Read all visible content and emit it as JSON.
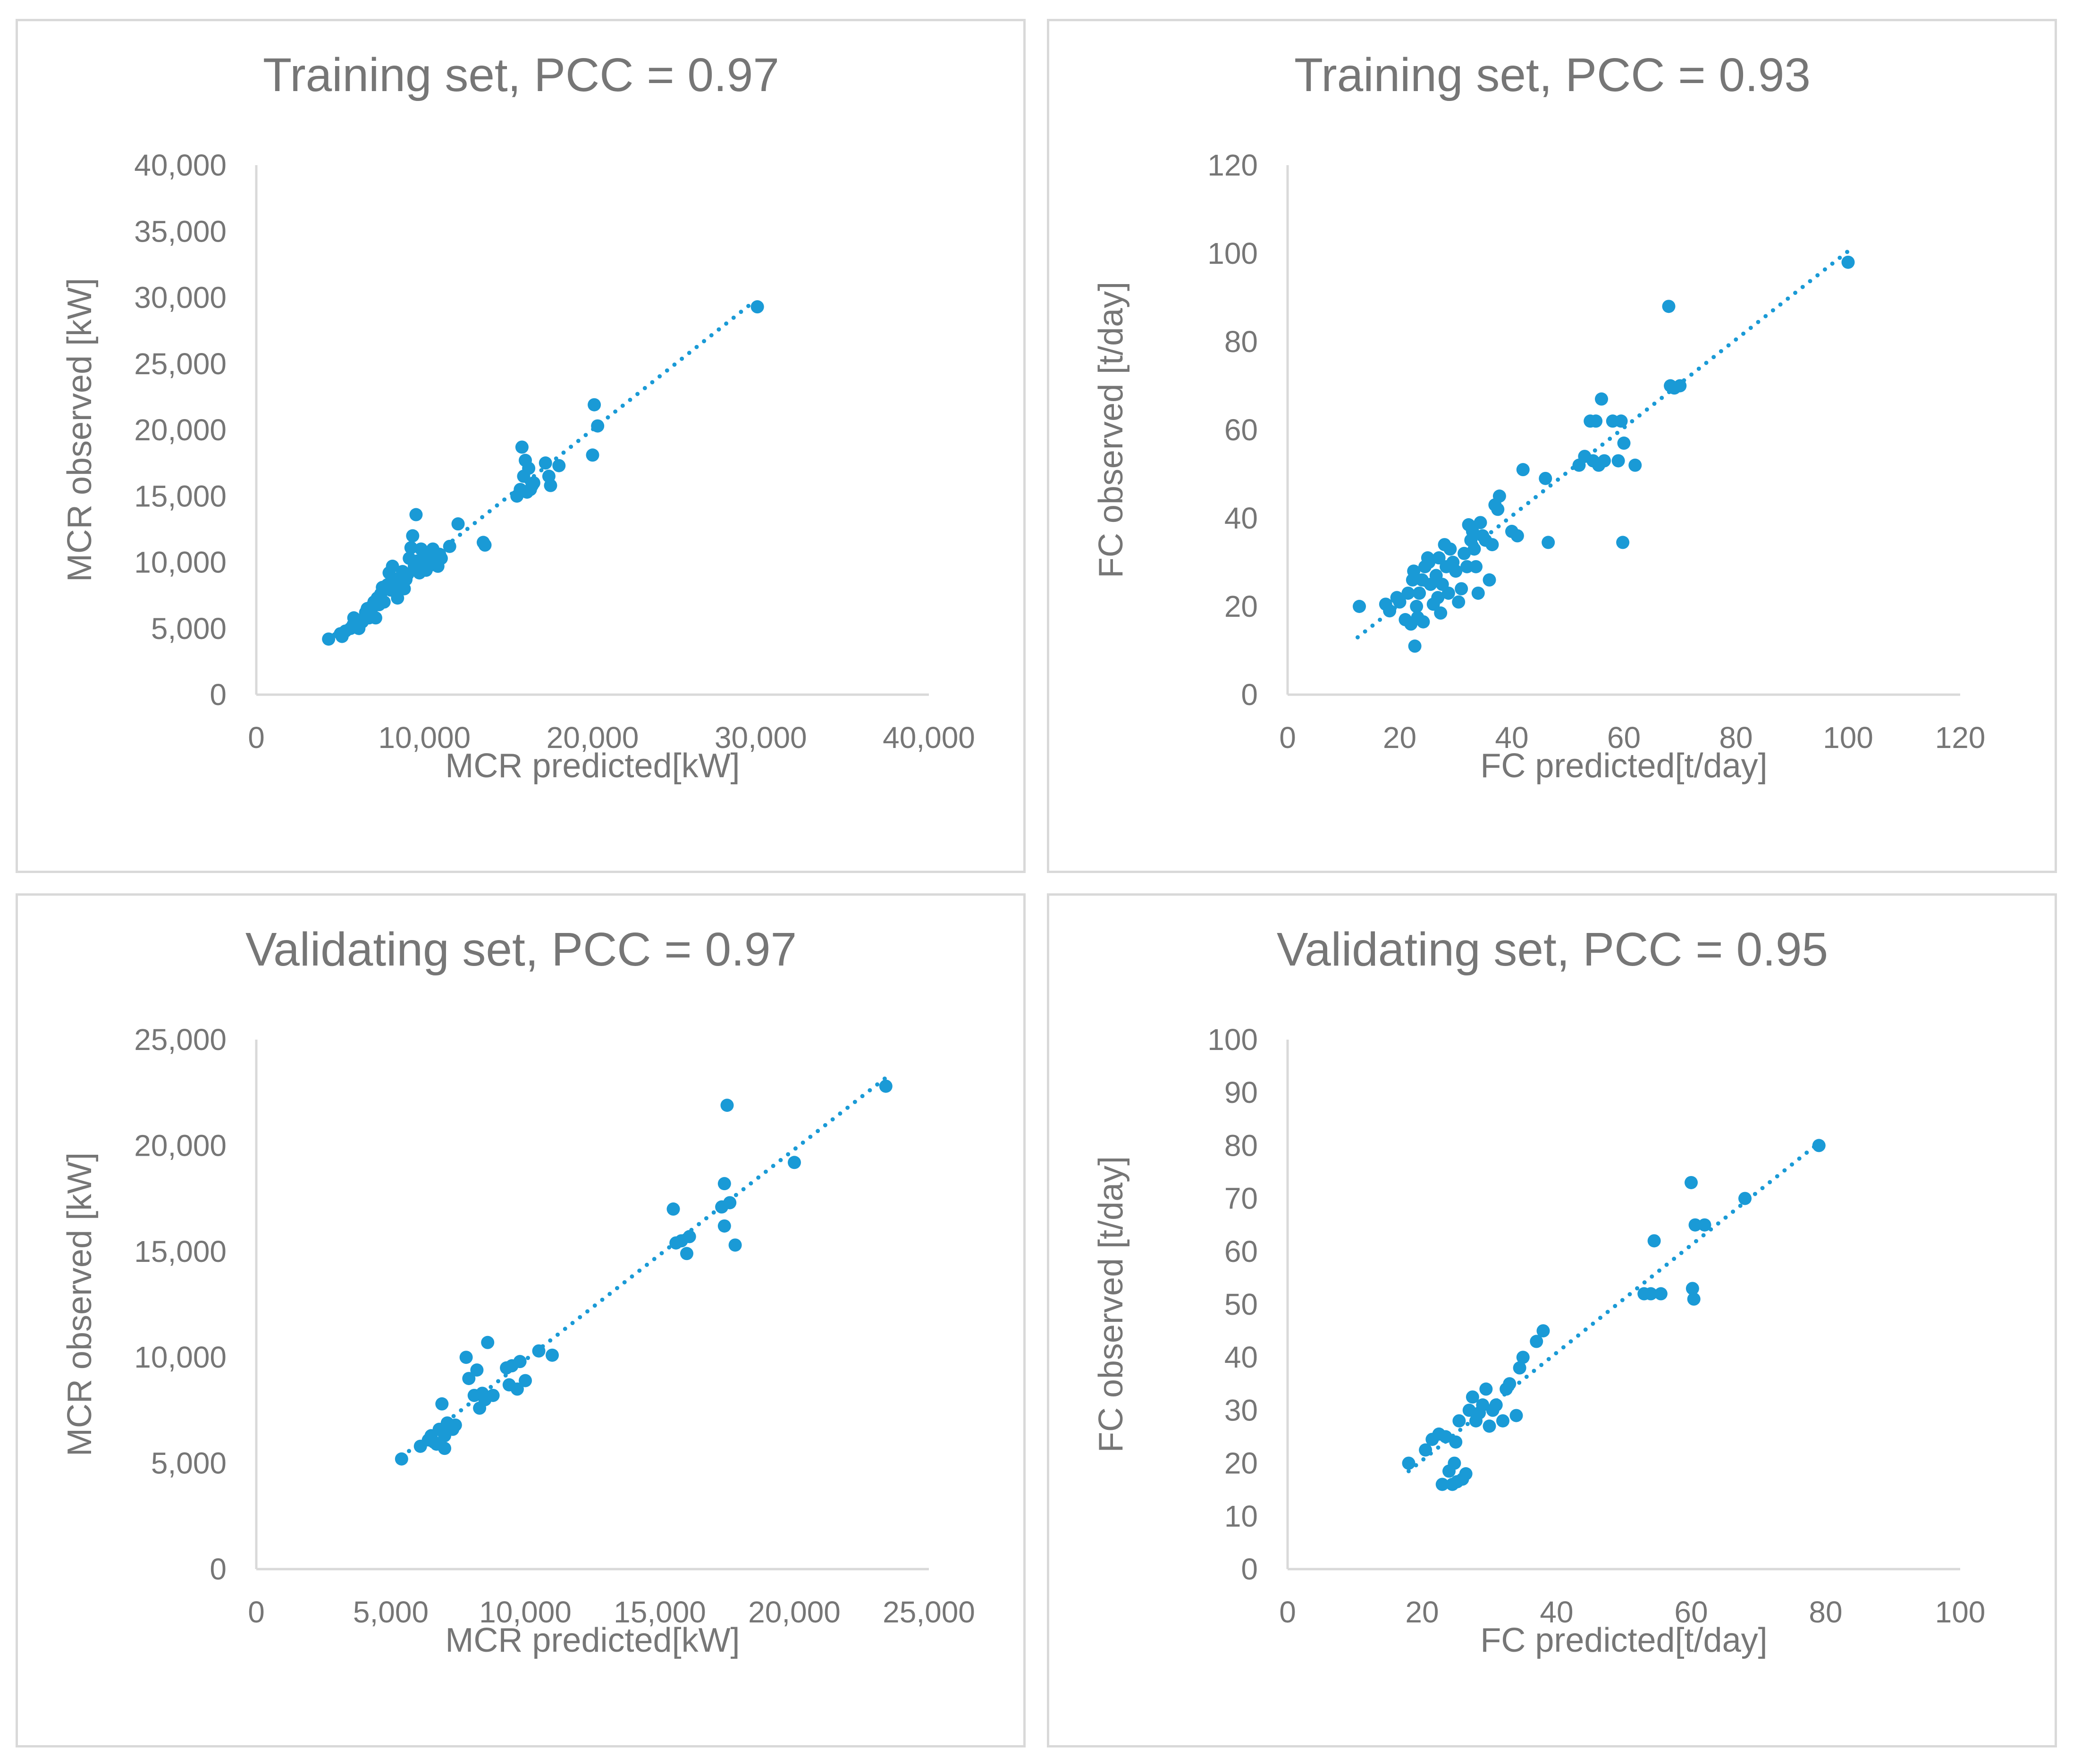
{
  "chart_data": [
    {
      "type": "scatter",
      "title": "Training set, PCC = 0.97",
      "xlabel": "MCR predicted[kW]",
      "ylabel": "MCR observed [kW]",
      "xlim": [
        0,
        40000
      ],
      "ylim": [
        0,
        40000
      ],
      "xticks": [
        "0",
        "10,000",
        "20,000",
        "30,000",
        "40,000"
      ],
      "yticks": [
        "0",
        "5,000",
        "10,000",
        "15,000",
        "20,000",
        "25,000",
        "30,000",
        "35,000",
        "40,000"
      ],
      "trendline": [
        [
          4200,
          4100
        ],
        [
          29500,
          29600
        ]
      ],
      "points": [
        [
          4300,
          4200
        ],
        [
          5000,
          4600
        ],
        [
          5100,
          4400
        ],
        [
          5300,
          4800
        ],
        [
          5600,
          5000
        ],
        [
          5800,
          5800
        ],
        [
          6000,
          5400
        ],
        [
          6100,
          5000
        ],
        [
          6300,
          5500
        ],
        [
          6500,
          6200
        ],
        [
          6600,
          6500
        ],
        [
          6700,
          5800
        ],
        [
          6800,
          6600
        ],
        [
          6900,
          6000
        ],
        [
          7000,
          7000
        ],
        [
          7100,
          5800
        ],
        [
          7200,
          7300
        ],
        [
          7300,
          6800
        ],
        [
          7400,
          7600
        ],
        [
          7500,
          8100
        ],
        [
          7600,
          7000
        ],
        [
          7800,
          8300
        ],
        [
          7900,
          9200
        ],
        [
          8000,
          7900
        ],
        [
          8100,
          9700
        ],
        [
          8200,
          8300
        ],
        [
          8300,
          7800
        ],
        [
          8400,
          7300
        ],
        [
          8500,
          8800
        ],
        [
          8600,
          8100
        ],
        [
          8700,
          9300
        ],
        [
          8800,
          8000
        ],
        [
          8900,
          8700
        ],
        [
          9000,
          9100
        ],
        [
          9100,
          10300
        ],
        [
          9200,
          11100
        ],
        [
          9300,
          12000
        ],
        [
          9400,
          9700
        ],
        [
          9500,
          13600
        ],
        [
          9600,
          10100
        ],
        [
          9700,
          9200
        ],
        [
          9800,
          11000
        ],
        [
          9900,
          9600
        ],
        [
          10000,
          10100
        ],
        [
          10100,
          9400
        ],
        [
          10200,
          10700
        ],
        [
          10300,
          10200
        ],
        [
          10400,
          9800
        ],
        [
          10500,
          11000
        ],
        [
          10600,
          10500
        ],
        [
          10700,
          10000
        ],
        [
          10800,
          9700
        ],
        [
          10900,
          10600
        ],
        [
          11000,
          10300
        ],
        [
          11500,
          11200
        ],
        [
          12000,
          12900
        ],
        [
          13500,
          11500
        ],
        [
          13600,
          11300
        ],
        [
          15500,
          15000
        ],
        [
          15700,
          15500
        ],
        [
          15800,
          18700
        ],
        [
          15900,
          16500
        ],
        [
          16000,
          17700
        ],
        [
          16100,
          15300
        ],
        [
          16200,
          17100
        ],
        [
          16300,
          15500
        ],
        [
          16400,
          15800
        ],
        [
          16500,
          16000
        ],
        [
          17200,
          17500
        ],
        [
          17400,
          16500
        ],
        [
          17500,
          15800
        ],
        [
          18000,
          17300
        ],
        [
          20000,
          18100
        ],
        [
          20100,
          21900
        ],
        [
          20300,
          20300
        ],
        [
          29800,
          29300
        ]
      ]
    },
    {
      "type": "scatter",
      "title": "Training set, PCC = 0.93",
      "xlabel": "FC predicted[t/day]",
      "ylabel": "FC observed [t/day]",
      "xlim": [
        0,
        120
      ],
      "ylim": [
        0,
        120
      ],
      "xticks": [
        "0",
        "20",
        "40",
        "60",
        "80",
        "100",
        "120"
      ],
      "yticks": [
        "0",
        "20",
        "40",
        "60",
        "80",
        "100",
        "120"
      ],
      "trendline": [
        [
          12.5,
          13
        ],
        [
          100,
          100.5
        ]
      ],
      "points": [
        [
          12.8,
          20
        ],
        [
          17.5,
          20.5
        ],
        [
          18.2,
          19
        ],
        [
          19.5,
          22
        ],
        [
          20,
          21
        ],
        [
          21,
          17
        ],
        [
          21.5,
          23
        ],
        [
          22,
          16
        ],
        [
          22.3,
          26
        ],
        [
          22.5,
          28
        ],
        [
          22.7,
          11
        ],
        [
          23,
          20
        ],
        [
          23.2,
          17.5
        ],
        [
          23.5,
          23
        ],
        [
          24,
          26
        ],
        [
          24.2,
          16.5
        ],
        [
          24.5,
          29
        ],
        [
          25,
          31
        ],
        [
          25.2,
          30
        ],
        [
          25.5,
          25
        ],
        [
          26,
          20.5
        ],
        [
          26.5,
          27
        ],
        [
          26.8,
          22
        ],
        [
          27,
          31
        ],
        [
          27.3,
          18.5
        ],
        [
          27.6,
          25
        ],
        [
          28,
          34
        ],
        [
          28.3,
          29
        ],
        [
          28.7,
          23
        ],
        [
          29,
          33
        ],
        [
          29.5,
          30
        ],
        [
          30,
          28
        ],
        [
          30.5,
          21
        ],
        [
          31,
          24
        ],
        [
          31.5,
          32
        ],
        [
          32,
          29
        ],
        [
          32.3,
          38.5
        ],
        [
          32.7,
          35
        ],
        [
          33,
          37
        ],
        [
          33.3,
          33
        ],
        [
          33.6,
          29
        ],
        [
          34,
          23
        ],
        [
          34.4,
          39
        ],
        [
          34.8,
          36
        ],
        [
          35.3,
          35
        ],
        [
          36,
          26
        ],
        [
          36.5,
          34
        ],
        [
          37,
          43
        ],
        [
          37.5,
          42
        ],
        [
          37.8,
          45
        ],
        [
          40,
          37
        ],
        [
          41,
          36
        ],
        [
          42,
          51
        ],
        [
          46,
          49
        ],
        [
          46.5,
          34.5
        ],
        [
          52,
          52
        ],
        [
          53,
          54
        ],
        [
          54,
          62
        ],
        [
          54.5,
          53
        ],
        [
          55,
          62
        ],
        [
          55.5,
          52
        ],
        [
          56,
          67
        ],
        [
          56.5,
          53
        ],
        [
          58,
          62
        ],
        [
          59,
          53
        ],
        [
          59.5,
          62
        ],
        [
          59.8,
          34.5
        ],
        [
          60,
          57
        ],
        [
          62,
          52
        ],
        [
          68,
          88
        ],
        [
          68.3,
          70
        ],
        [
          69,
          69.5
        ],
        [
          70,
          70
        ],
        [
          100,
          98
        ]
      ]
    },
    {
      "type": "scatter",
      "title": "Validating set, PCC = 0.97",
      "xlabel": "MCR predicted[kW]",
      "ylabel": "MCR observed [kW]",
      "xlim": [
        0,
        25000
      ],
      "ylim": [
        0,
        25000
      ],
      "xticks": [
        "0",
        "5,000",
        "10,000",
        "15,000",
        "20,000",
        "25,000"
      ],
      "yticks": [
        "0",
        "5,000",
        "10,000",
        "15,000",
        "20,000",
        "25,000"
      ],
      "trendline": [
        [
          5400,
          5300
        ],
        [
          23400,
          23200
        ]
      ],
      "points": [
        [
          5400,
          5200
        ],
        [
          6100,
          5800
        ],
        [
          6400,
          6100
        ],
        [
          6500,
          6300
        ],
        [
          6600,
          6000
        ],
        [
          6700,
          5900
        ],
        [
          6800,
          6600
        ],
        [
          6900,
          7800
        ],
        [
          7000,
          6300
        ],
        [
          7000,
          5700
        ],
        [
          7100,
          6900
        ],
        [
          7200,
          6700
        ],
        [
          7300,
          6600
        ],
        [
          7400,
          6800
        ],
        [
          7800,
          10000
        ],
        [
          7900,
          9000
        ],
        [
          8100,
          8200
        ],
        [
          8200,
          9400
        ],
        [
          8300,
          7600
        ],
        [
          8400,
          8300
        ],
        [
          8500,
          8000
        ],
        [
          8600,
          10700
        ],
        [
          8800,
          8200
        ],
        [
          9300,
          9500
        ],
        [
          9400,
          8700
        ],
        [
          9500,
          9600
        ],
        [
          9700,
          8500
        ],
        [
          9800,
          9800
        ],
        [
          10000,
          8900
        ],
        [
          10500,
          10300
        ],
        [
          11000,
          10100
        ],
        [
          15500,
          17000
        ],
        [
          15600,
          15400
        ],
        [
          15800,
          15500
        ],
        [
          16000,
          14900
        ],
        [
          16100,
          15700
        ],
        [
          17300,
          17100
        ],
        [
          17400,
          18200
        ],
        [
          17400,
          16200
        ],
        [
          17500,
          21900
        ],
        [
          17600,
          17300
        ],
        [
          17800,
          15300
        ],
        [
          20000,
          19200
        ],
        [
          23400,
          22800
        ]
      ]
    },
    {
      "type": "scatter",
      "title": "Validating set, PCC = 0.95",
      "xlabel": "FC predicted[t/day]",
      "ylabel": "FC observed [t/day]",
      "xlim": [
        0,
        100
      ],
      "ylim": [
        0,
        100
      ],
      "xticks": [
        "0",
        "20",
        "40",
        "60",
        "80",
        "100"
      ],
      "yticks": [
        "0",
        "10",
        "20",
        "30",
        "40",
        "50",
        "60",
        "70",
        "80",
        "90",
        "100"
      ],
      "trendline": [
        [
          18,
          18.5
        ],
        [
          79,
          80.5
        ]
      ],
      "points": [
        [
          18,
          20
        ],
        [
          20.5,
          22.5
        ],
        [
          21.5,
          24.5
        ],
        [
          22.5,
          25.5
        ],
        [
          23,
          16
        ],
        [
          23.5,
          25
        ],
        [
          24,
          18.5
        ],
        [
          24.5,
          16
        ],
        [
          24.8,
          20
        ],
        [
          25,
          24
        ],
        [
          25.2,
          16.5
        ],
        [
          25.5,
          28
        ],
        [
          26,
          17
        ],
        [
          26.5,
          18
        ],
        [
          27,
          30
        ],
        [
          27.5,
          32.5
        ],
        [
          28,
          28
        ],
        [
          28.5,
          29.5
        ],
        [
          29,
          31
        ],
        [
          29.5,
          34
        ],
        [
          30,
          27
        ],
        [
          30.5,
          30
        ],
        [
          31,
          31
        ],
        [
          32,
          28
        ],
        [
          32.5,
          34
        ],
        [
          33,
          35
        ],
        [
          34,
          29
        ],
        [
          34.5,
          38
        ],
        [
          35,
          40
        ],
        [
          37,
          43
        ],
        [
          38,
          45
        ],
        [
          53,
          52
        ],
        [
          54,
          52
        ],
        [
          54.5,
          62
        ],
        [
          55.5,
          52
        ],
        [
          60,
          73
        ],
        [
          60.2,
          53
        ],
        [
          60.4,
          51
        ],
        [
          60.6,
          65
        ],
        [
          62,
          65
        ],
        [
          68,
          70
        ],
        [
          79,
          80
        ]
      ]
    }
  ]
}
